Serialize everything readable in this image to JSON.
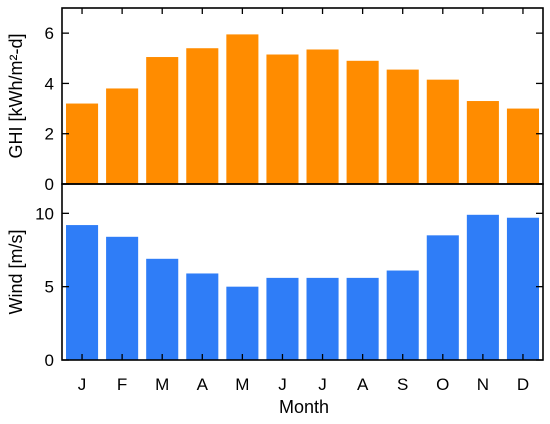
{
  "chart_data": {
    "type": "bar",
    "categories": [
      "J",
      "F",
      "M",
      "A",
      "M",
      "J",
      "J",
      "A",
      "S",
      "O",
      "N",
      "D"
    ],
    "xlabel": "Month",
    "panels": [
      {
        "id": "ghi",
        "ylabel": "GHI [kWh/m²-d]",
        "ylim": [
          0,
          7
        ],
        "yticks": [
          "0",
          "2",
          "4",
          "6"
        ],
        "values": [
          3.2,
          3.8,
          5.05,
          5.4,
          5.95,
          5.15,
          5.35,
          4.9,
          4.55,
          4.15,
          3.3,
          3.0
        ],
        "color": "#ff8c00"
      },
      {
        "id": "wind",
        "ylabel": "Wind [m/s]",
        "ylim": [
          0,
          12
        ],
        "yticks": [
          "0",
          "5",
          "10"
        ],
        "values": [
          9.2,
          8.4,
          6.9,
          5.9,
          5.0,
          5.6,
          5.6,
          5.6,
          6.1,
          8.5,
          9.9,
          9.7
        ],
        "color": "#2f7df7"
      }
    ]
  }
}
